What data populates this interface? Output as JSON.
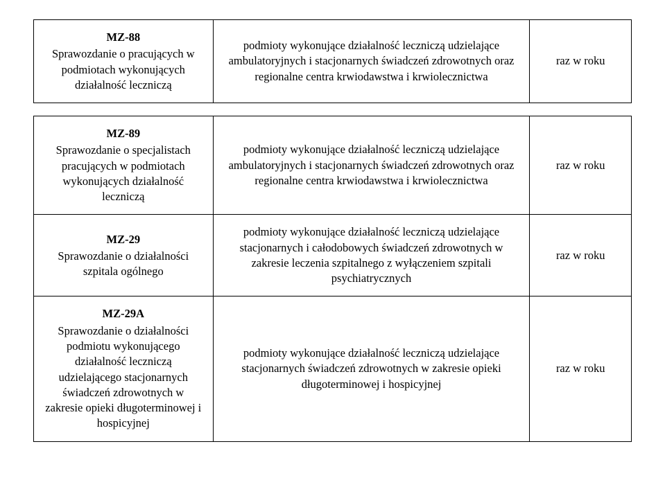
{
  "table": {
    "font_family": "Times New Roman",
    "font_size_pt": 12,
    "border_color": "#000000",
    "background_color": "#ffffff",
    "text_color": "#000000",
    "columns": [
      "report",
      "entities",
      "frequency"
    ],
    "column_widths_pct": [
      30,
      53,
      17
    ],
    "rows": [
      {
        "code": "MZ-88",
        "title": "Sprawozdanie o pracujących w podmiotach wykonujących działalność leczniczą",
        "entities": "podmioty wykonujące działalność leczniczą udzielające ambulatoryjnych i stacjonarnych świadczeń zdrowotnych oraz regionalne centra krwiodawstwa i krwiolecznictwa",
        "frequency": "raz w roku"
      },
      {
        "code": "MZ-89",
        "title": "Sprawozdanie o specjalistach pracujących w podmiotach wykonujących działalność leczniczą",
        "entities": "podmioty wykonujące działalność leczniczą udzielające ambulatoryjnych i stacjonarnych świadczeń zdrowotnych oraz regionalne centra krwiodawstwa i krwiolecznictwa",
        "frequency": "raz w roku"
      },
      {
        "code": "MZ-29",
        "title": "Sprawozdanie o działalności szpitala ogólnego",
        "entities": "podmioty wykonujące działalność leczniczą udzielające stacjonarnych i całodobowych świadczeń zdrowotnych w zakresie leczenia szpitalnego z wyłączeniem szpitali psychiatrycznych",
        "frequency": "raz w roku"
      },
      {
        "code": "MZ-29A",
        "title": "Sprawozdanie o działalności podmiotu wykonującego działalność leczniczą udzielającego stacjonarnych świadczeń zdrowotnych w zakresie opieki długoterminowej i hospicyjnej",
        "entities": "podmioty wykonujące działalność leczniczą udzielające stacjonarnych świadczeń zdrowotnych w zakresie opieki długoterminowej i hospicyjnej",
        "frequency": "raz w roku"
      }
    ]
  }
}
